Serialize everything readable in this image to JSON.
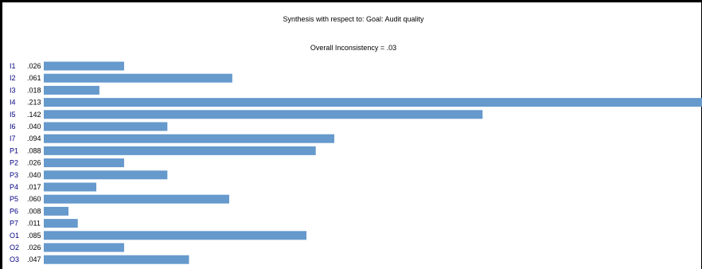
{
  "chart_data": {
    "type": "bar",
    "orientation": "horizontal",
    "title": "Synthesis with respect to: Goal: Audit quality",
    "subtitle": "Overall Inconsistency = .03",
    "categories": [
      "I1",
      "I2",
      "I3",
      "I4",
      "I5",
      "I6",
      "I7",
      "P1",
      "P2",
      "P3",
      "P4",
      "P5",
      "P6",
      "P7",
      "O1",
      "O2",
      "O3"
    ],
    "value_labels": [
      ".026",
      ".061",
      ".018",
      ".213",
      ".142",
      ".040",
      ".094",
      ".088",
      ".026",
      ".040",
      ".017",
      ".060",
      ".008",
      ".011",
      ".085",
      ".026",
      ".047"
    ],
    "values": [
      0.026,
      0.061,
      0.018,
      0.213,
      0.142,
      0.04,
      0.094,
      0.088,
      0.026,
      0.04,
      0.017,
      0.06,
      0.008,
      0.011,
      0.085,
      0.026,
      0.047
    ],
    "xlim": [
      0,
      0.213
    ],
    "grid": false,
    "legend": "none",
    "bar_color": "#6699CC",
    "category_label_color": "#000080",
    "value_label_color": "#000000"
  }
}
